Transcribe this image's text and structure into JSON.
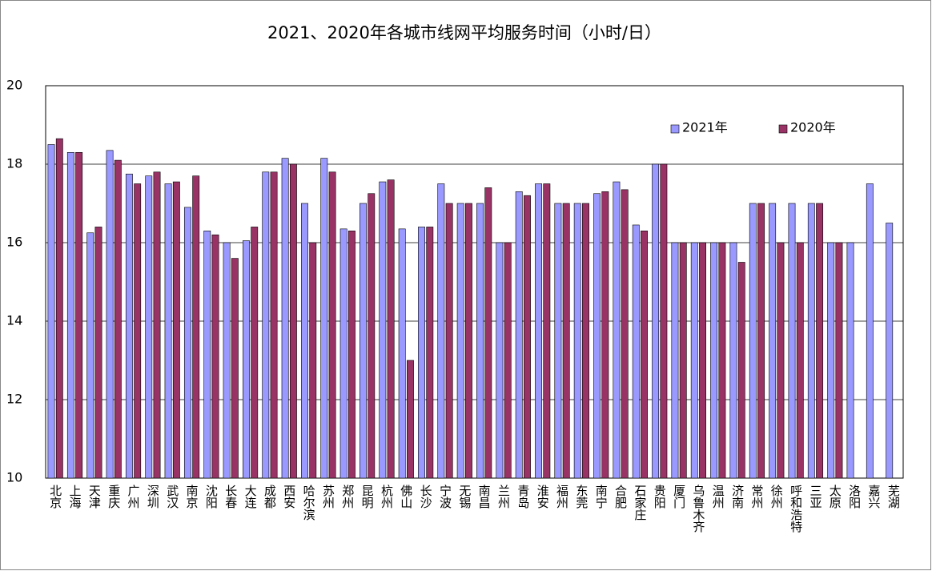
{
  "chart_data": {
    "type": "bar",
    "title": "2021、2020年各城市线网平均服务时间（小时/日）",
    "categories": [
      "北京",
      "上海",
      "天津",
      "重庆",
      "广州",
      "深圳",
      "武汉",
      "南京",
      "沈阳",
      "长春",
      "大连",
      "成都",
      "西安",
      "哈尔滨",
      "苏州",
      "郑州",
      "昆明",
      "杭州",
      "佛山",
      "长沙",
      "宁波",
      "无锡",
      "南昌",
      "兰州",
      "青岛",
      "淮安",
      "福州",
      "东莞",
      "南宁",
      "合肥",
      "石家庄",
      "贵阳",
      "厦门",
      "乌鲁木齐",
      "温州",
      "济南",
      "常州",
      "徐州",
      "呼和浩特",
      "三亚",
      "太原",
      "洛阳",
      "嘉兴",
      "芜湖"
    ],
    "series": [
      {
        "name": "2021年",
        "color": "#9999ff",
        "values": [
          18.5,
          18.3,
          16.25,
          18.35,
          17.75,
          17.7,
          17.5,
          16.9,
          16.3,
          16,
          16.05,
          17.8,
          18.15,
          17,
          18.15,
          16.35,
          17,
          17.55,
          16.35,
          16.4,
          17.5,
          17,
          17,
          16,
          17.3,
          17.5,
          17,
          17,
          17.25,
          17.55,
          16.45,
          18,
          16,
          16,
          16,
          16,
          17,
          17,
          17,
          17,
          16,
          16,
          17.5,
          16.5
        ]
      },
      {
        "name": "2020年",
        "color": "#993366",
        "values": [
          18.65,
          18.3,
          16.4,
          18.1,
          17.5,
          17.8,
          17.55,
          17.7,
          16.2,
          15.6,
          16.4,
          17.8,
          18,
          16,
          17.8,
          16.3,
          17.25,
          17.6,
          13,
          16.4,
          17,
          17,
          17.4,
          16,
          17.2,
          17.5,
          17,
          17,
          17.3,
          17.35,
          16.3,
          18,
          16,
          16,
          16,
          15.5,
          17,
          16,
          16,
          17,
          16,
          null,
          null,
          null
        ]
      }
    ],
    "ylim": [
      10,
      20
    ],
    "yticks": [
      10,
      12,
      14,
      16,
      18,
      20
    ],
    "grid": true,
    "legend": "top-right"
  }
}
